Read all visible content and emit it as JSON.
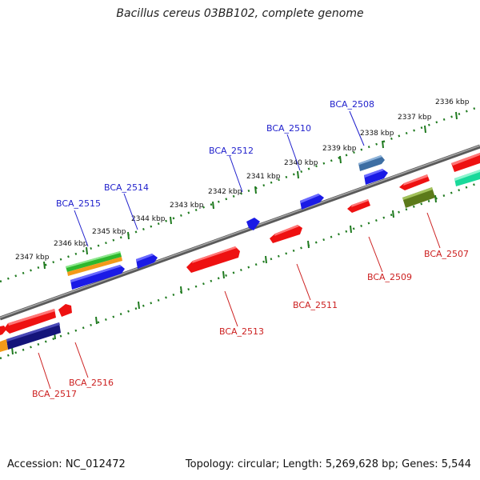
{
  "title": "Bacillus cereus 03BB102, complete genome",
  "footer": {
    "accession": "Accession: NC_012472",
    "summary": "Topology: circular; Length: 5,269,628 bp; Genes: 5,544"
  },
  "colors": {
    "backbone": "#8c8c8c",
    "ruler": "#1f7a1f",
    "forward_label": "#1f1fcc",
    "reverse_label": "#cc1f1f"
  },
  "ruler_labels": [
    "2347 kbp",
    "2346 kbp",
    "2345 kbp",
    "2344 kbp",
    "2343 kbp",
    "2342 kbp",
    "2341 kbp",
    "2340 kbp",
    "2339 kbp",
    "2338 kbp",
    "2337 kbp",
    "2336 kbp"
  ],
  "forward_labels": [
    "BCA_2515",
    "BCA_2514",
    "BCA_2512",
    "BCA_2510",
    "BCA_2508"
  ],
  "reverse_labels": [
    "BCA_2517",
    "BCA_2516",
    "BCA_2513",
    "BCA_2511",
    "BCA_2509",
    "BCA_2507"
  ]
}
